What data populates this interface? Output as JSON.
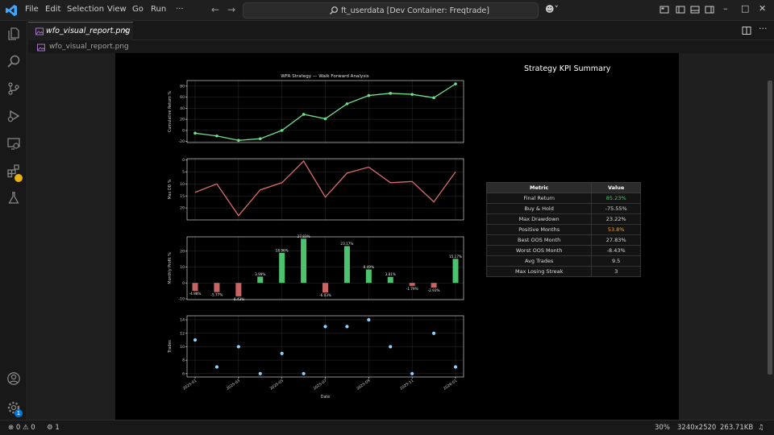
{
  "app": {
    "menu": [
      "File",
      "Edit",
      "Selection",
      "View",
      "Go",
      "Run",
      "···"
    ],
    "command_center": "ft_userdata [Dev Container: Freqtrade]",
    "accent": "#0078d4"
  },
  "activity_bar": {
    "items": [
      "explorer-icon",
      "search-icon",
      "source-control-icon",
      "run-debug-icon",
      "remote-explorer-icon",
      "extensions-icon",
      "testing-icon"
    ],
    "bottom": [
      "account-icon",
      "manage-gear-icon"
    ],
    "manage_badge": "1"
  },
  "tab": {
    "label": "wfo_visual_report.png"
  },
  "breadcrumb": {
    "file": "wfo_visual_report.png"
  },
  "figure": {
    "title": "WFA Strategy — Walk Forward Analysis",
    "kpi_title": "Strategy KPI Summary"
  },
  "chart_data": [
    {
      "type": "line",
      "title": "WFA Strategy — Walk Forward Analysis",
      "ylabel": "Cumulative Return %",
      "x": [
        "2025-01",
        "2025-02",
        "2025-03",
        "2025-04",
        "2025-05",
        "2025-06",
        "2025-07",
        "2025-08",
        "2025-09",
        "2025-10",
        "2025-11",
        "2025-12",
        "2026-01"
      ],
      "values": [
        -5,
        -10,
        -18,
        -15,
        0,
        29,
        21,
        48,
        63,
        67,
        65,
        59,
        84
      ],
      "yticks": [
        -20,
        0,
        20,
        40,
        60,
        80
      ],
      "ylim": [
        -22,
        90
      ],
      "color": "#6fe08a",
      "grid": true
    },
    {
      "type": "line",
      "ylabel": "Max DD %",
      "x": [
        "2025-01",
        "2025-02",
        "2025-03",
        "2025-04",
        "2025-05",
        "2025-06",
        "2025-07",
        "2025-08",
        "2025-09",
        "2025-10",
        "2025-11",
        "2025-12",
        "2026-01"
      ],
      "values": [
        13.5,
        10,
        23.2,
        12.5,
        9.5,
        0.5,
        15.5,
        5.5,
        3,
        9.5,
        9,
        17.5,
        5
      ],
      "yticks": [
        0,
        5,
        10,
        15,
        20
      ],
      "ylim": [
        -0.5,
        25
      ],
      "y_inverted": true,
      "color": "#d96b6b",
      "grid": true
    },
    {
      "type": "bar",
      "ylabel": "Monthly Profit %",
      "x": [
        "2025-01",
        "2025-02",
        "2025-03",
        "2025-04",
        "2025-05",
        "2025-06",
        "2025-07",
        "2025-08",
        "2025-09",
        "2025-10",
        "2025-11",
        "2025-12",
        "2026-01"
      ],
      "values": [
        -4.98,
        -5.77,
        -8.43,
        3.99,
        18.96,
        27.83,
        -6.03,
        23.17,
        8.49,
        3.81,
        -1.79,
        -2.93,
        15.17
      ],
      "labels": [
        "-4.98%",
        "-5.77%",
        "-8.43%",
        "3.99%",
        "18.96%",
        "27.83%",
        "-6.03%",
        "23.17%",
        "8.49%",
        "3.81%",
        "-1.79%",
        "-2.93%",
        "15.17%"
      ],
      "yticks": [
        -10,
        0,
        10,
        20
      ],
      "ylim": [
        -10.5,
        29
      ],
      "pos_color": "#4cc46f",
      "neg_color": "#c86464",
      "grid": true
    },
    {
      "type": "scatter",
      "ylabel": "Trades",
      "xlabel": "Date",
      "x": [
        "2025-01",
        "2025-02",
        "2025-03",
        "2025-04",
        "2025-05",
        "2025-06",
        "2025-07",
        "2025-08",
        "2025-09",
        "2025-10",
        "2025-11",
        "2025-12",
        "2026-01"
      ],
      "values": [
        11,
        7,
        10,
        6,
        9,
        6,
        13,
        13,
        14,
        10,
        6,
        12,
        7
      ],
      "yticks": [
        6,
        8,
        10,
        12,
        14
      ],
      "ylim": [
        5.5,
        14.6
      ],
      "xticks": [
        "2025-01",
        "2025-03",
        "2025-05",
        "2025-07",
        "2025-09",
        "2025-11",
        "2026-01"
      ],
      "color": "#8ed2ff",
      "grid": true
    }
  ],
  "kpi": {
    "headers": [
      "Metric",
      "Value"
    ],
    "rows": [
      {
        "metric": "Final Return",
        "value": "85.23%",
        "color": "#4cc46f"
      },
      {
        "metric": "Buy & Hold",
        "value": "-75.55%",
        "color": ""
      },
      {
        "metric": "Max Drawdown",
        "value": "23.22%",
        "color": ""
      },
      {
        "metric": "Positive Months",
        "value": "53.8%",
        "color": "#e6a23c"
      },
      {
        "metric": "Best OOS Month",
        "value": "27.83%",
        "color": ""
      },
      {
        "metric": "Worst OOS Month",
        "value": "-8.43%",
        "color": ""
      },
      {
        "metric": "Avg Trades",
        "value": "9.5",
        "color": ""
      },
      {
        "metric": "Max Losing Streak",
        "value": "3",
        "color": ""
      }
    ]
  },
  "status": {
    "errors": "0",
    "warnings": "0",
    "ports": "1",
    "zoom": "30%",
    "dimensions": "3240x2520",
    "filesize": "263.71KB"
  }
}
